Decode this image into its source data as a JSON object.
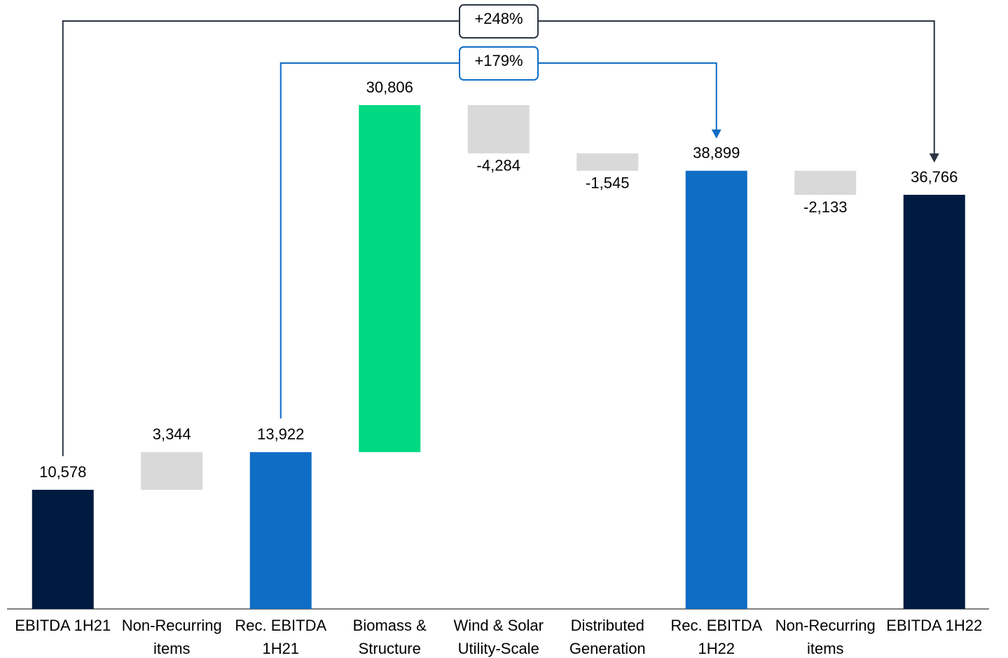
{
  "chart_data": {
    "type": "waterfall",
    "categories": [
      [
        "EBITDA 1H21"
      ],
      [
        "Non-Recurring",
        "items"
      ],
      [
        "Rec. EBITDA",
        "1H21"
      ],
      [
        "Biomass &",
        "Structure"
      ],
      [
        "Wind & Solar",
        "Utility-Scale"
      ],
      [
        "Distributed",
        "Generation"
      ],
      [
        "Rec. EBITDA",
        "1H22"
      ],
      [
        "Non-Recurring",
        "items"
      ],
      [
        "EBITDA 1H22"
      ]
    ],
    "values": [
      10578,
      3344,
      13922,
      30806,
      -4284,
      -1545,
      38899,
      -2133,
      36766
    ],
    "value_labels": [
      "10,578",
      "3,344",
      "13,922",
      "30,806",
      "-4,284",
      "-1,545",
      "38,899",
      "-2,133",
      "36,766"
    ],
    "kinds": [
      "total",
      "delta",
      "total",
      "delta",
      "delta",
      "delta",
      "total",
      "delta",
      "total"
    ],
    "colors": [
      "#001b41",
      "#d9d9d9",
      "#0f6dc6",
      "#00d882",
      "#d9d9d9",
      "#d9d9d9",
      "#0f6dc6",
      "#d9d9d9",
      "#001b41"
    ],
    "annotations": [
      {
        "text": "+248%",
        "from": 0,
        "to": 8,
        "color": "#2c3444"
      },
      {
        "text": "+179%",
        "from": 2,
        "to": 6,
        "color": "#0f6dc6"
      }
    ]
  }
}
